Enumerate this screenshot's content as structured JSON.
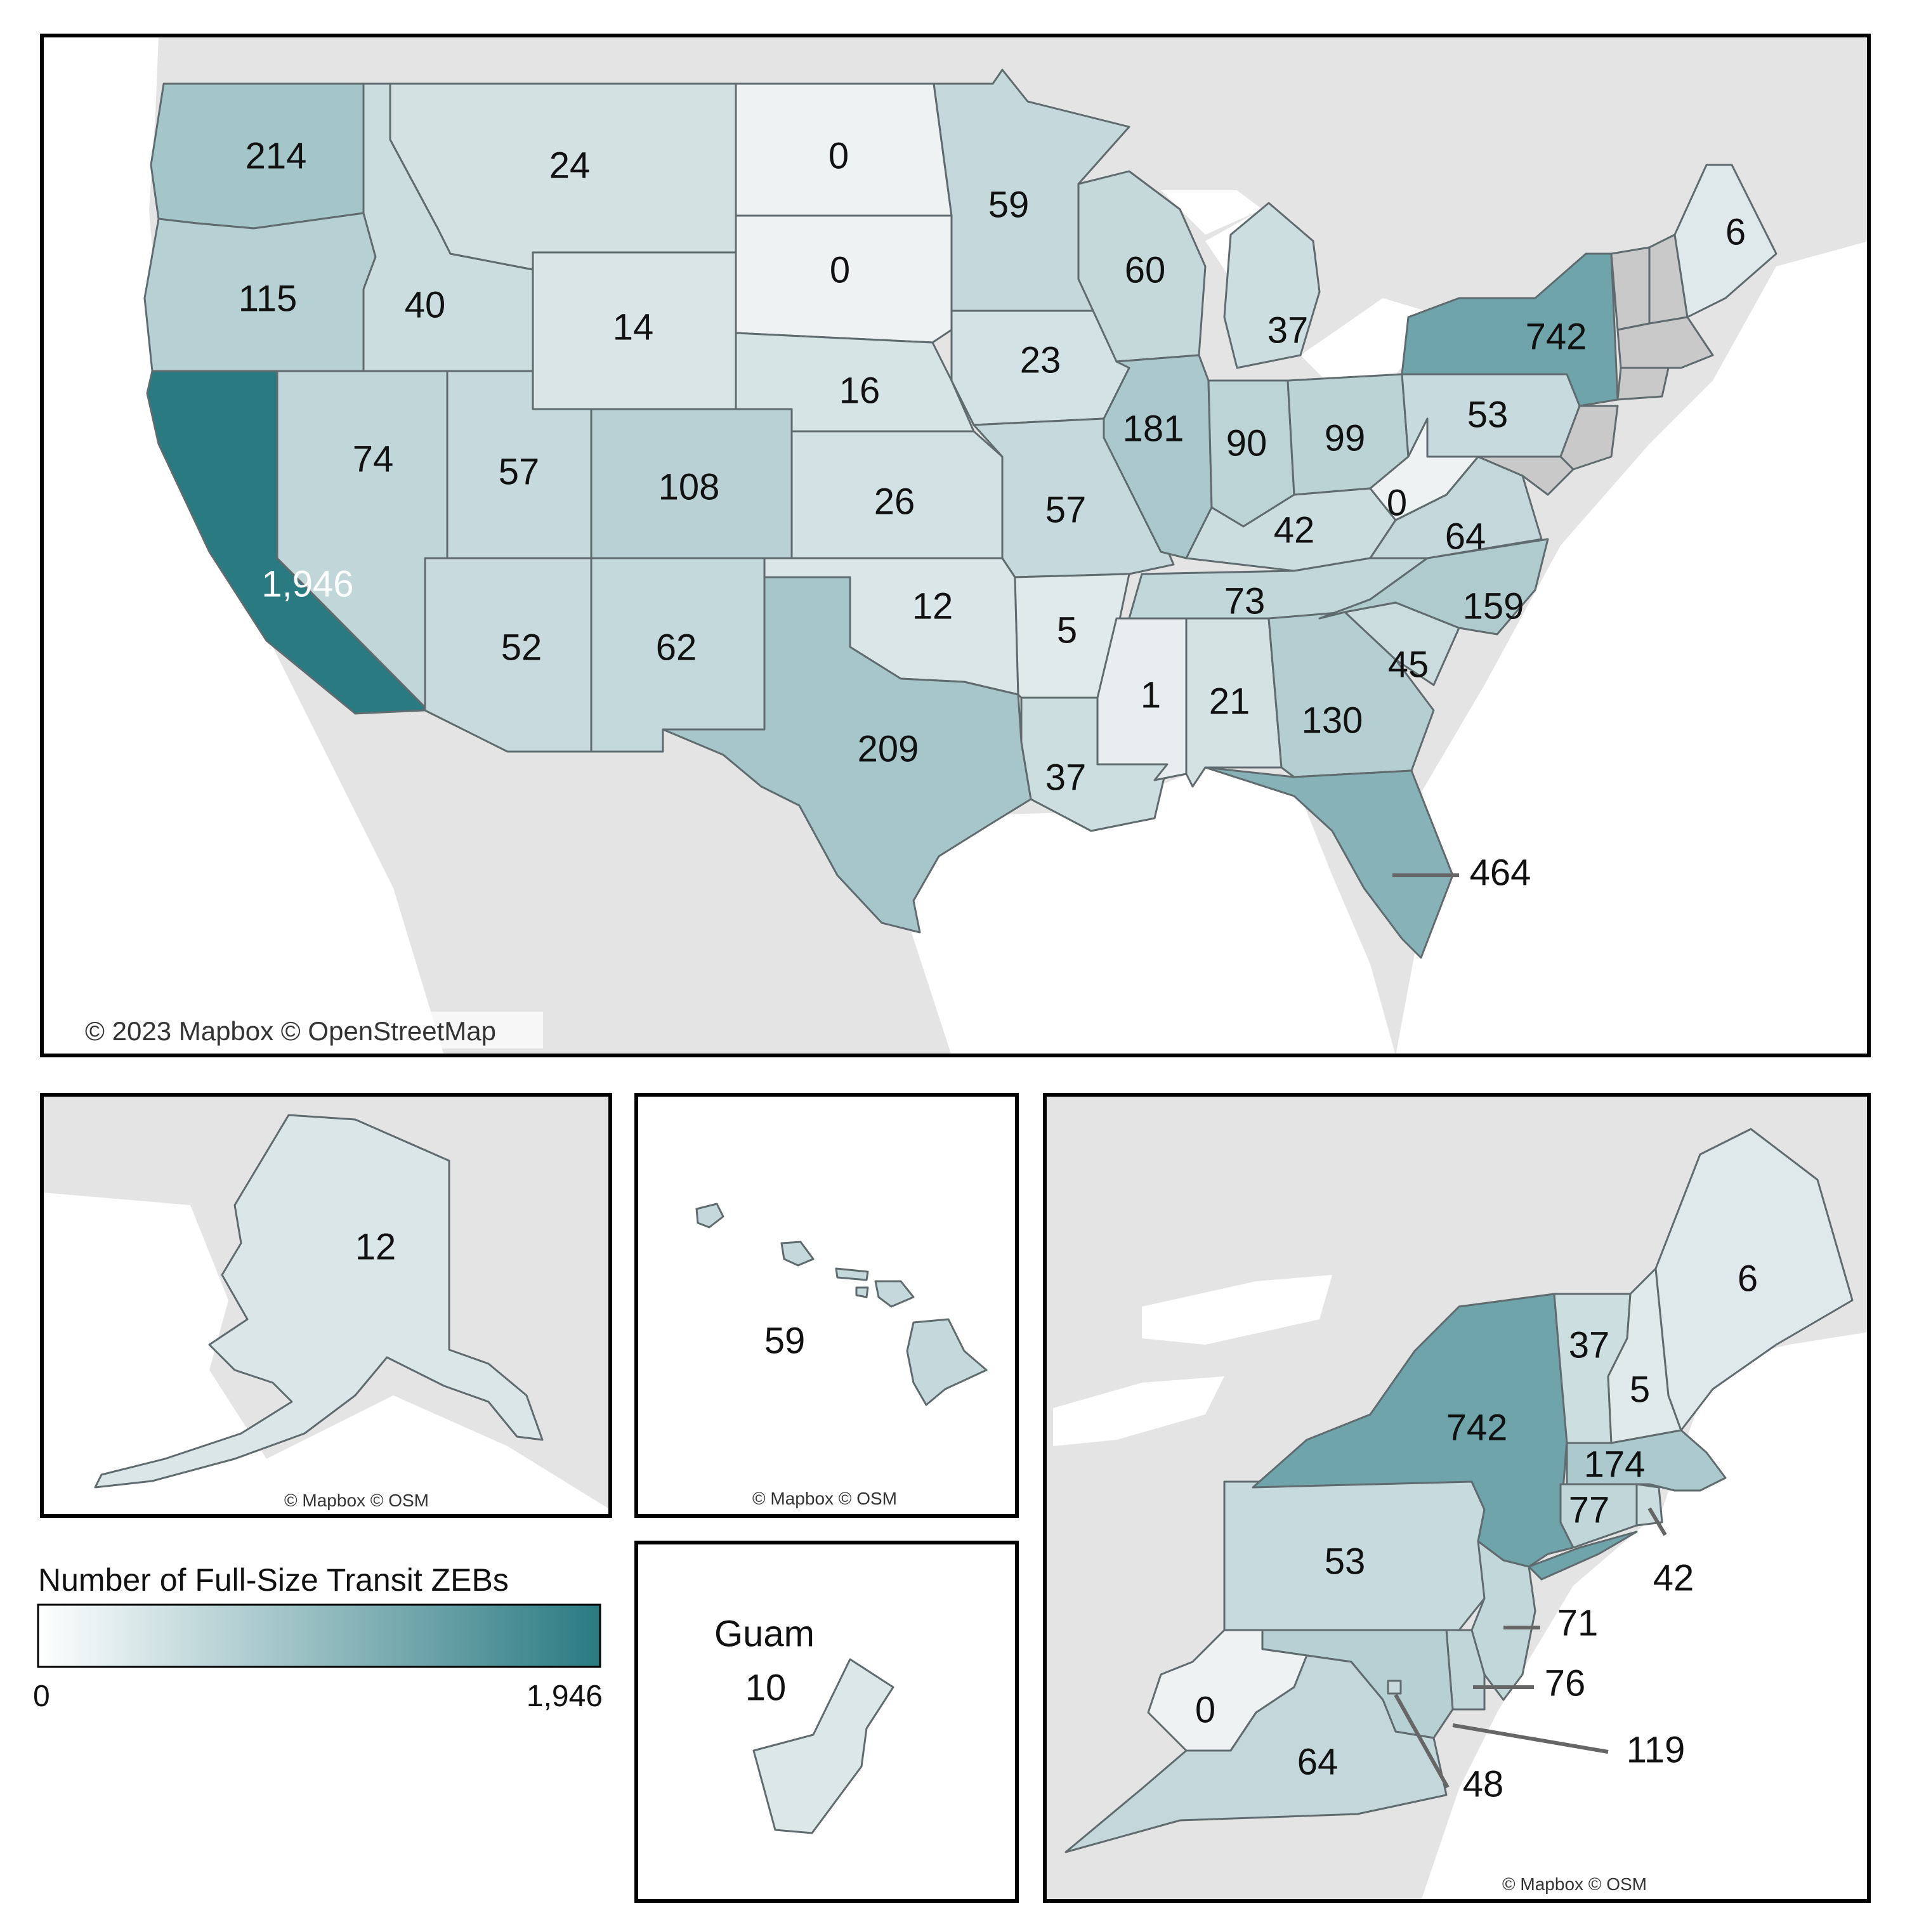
{
  "legend": {
    "title": "Number of Full-Size Transit ZEBs",
    "min_label": "0",
    "max_label": "1,946",
    "color_low": "#ffffff",
    "color_high": "#2a7a82"
  },
  "attribution": {
    "main": "© 2023 Mapbox © OpenStreetMap",
    "alaska": "© Mapbox © OSM",
    "hawaii": "© Mapbox © OSM",
    "northeast": "© Mapbox © OSM"
  },
  "colors": {
    "no_data": "#c9c9c9",
    "background_land": "#e4e4e4"
  },
  "max_value": 1946,
  "states": {
    "WA": {
      "label": "214",
      "value": 214
    },
    "OR": {
      "label": "115",
      "value": 115
    },
    "CA": {
      "label": "1,946",
      "value": 1946
    },
    "ID": {
      "label": "40",
      "value": 40
    },
    "NV": {
      "label": "74",
      "value": 74
    },
    "MT": {
      "label": "24",
      "value": 24
    },
    "WY": {
      "label": "14",
      "value": 14
    },
    "UT": {
      "label": "57",
      "value": 57
    },
    "AZ": {
      "label": "52",
      "value": 52
    },
    "CO": {
      "label": "108",
      "value": 108
    },
    "NM": {
      "label": "62",
      "value": 62
    },
    "ND": {
      "label": "0",
      "value": 0
    },
    "SD": {
      "label": "0",
      "value": 0
    },
    "NE": {
      "label": "16",
      "value": 16
    },
    "KS": {
      "label": "26",
      "value": 26
    },
    "OK": {
      "label": "12",
      "value": 12
    },
    "TX": {
      "label": "209",
      "value": 209
    },
    "MN": {
      "label": "59",
      "value": 59
    },
    "IA": {
      "label": "23",
      "value": 23
    },
    "MO": {
      "label": "57",
      "value": 57
    },
    "AR": {
      "label": "5",
      "value": 5
    },
    "LA": {
      "label": "37",
      "value": 37
    },
    "WI": {
      "label": "60",
      "value": 60
    },
    "IL": {
      "label": "181",
      "value": 181
    },
    "MI": {
      "label": "37",
      "value": 37
    },
    "IN": {
      "label": "90",
      "value": 90
    },
    "OH": {
      "label": "99",
      "value": 99
    },
    "KY": {
      "label": "42",
      "value": 42
    },
    "TN": {
      "label": "73",
      "value": 73
    },
    "MS": {
      "label": "1",
      "value": 1
    },
    "AL": {
      "label": "21",
      "value": 21
    },
    "GA": {
      "label": "130",
      "value": 130
    },
    "FL": {
      "label": "464",
      "value": 464
    },
    "SC": {
      "label": "45",
      "value": 45
    },
    "NC": {
      "label": "159",
      "value": 159
    },
    "VA": {
      "label": "64",
      "value": 64
    },
    "WV": {
      "label": "0",
      "value": 0
    },
    "PA": {
      "label": "53",
      "value": 53
    },
    "NY": {
      "label": "742",
      "value": 742
    },
    "ME": {
      "label": "6",
      "value": 6
    },
    "VT": {
      "label": "37",
      "value": 37
    },
    "NH": {
      "label": "5",
      "value": 5
    },
    "MA": {
      "label": "174",
      "value": 174
    },
    "CT": {
      "label": "77",
      "value": 77
    },
    "RI": {
      "label": "42",
      "value": 42
    },
    "NJ": {
      "label": "71",
      "value": 71
    },
    "DE": {
      "label": "76",
      "value": 76
    },
    "MD": {
      "label": "119",
      "value": 119
    },
    "DC": {
      "label": "48",
      "value": 48
    },
    "AK": {
      "label": "12",
      "value": 12
    },
    "HI": {
      "label": "59",
      "value": 59
    },
    "GU": {
      "label": "10",
      "value": 10,
      "name": "Guam"
    }
  }
}
